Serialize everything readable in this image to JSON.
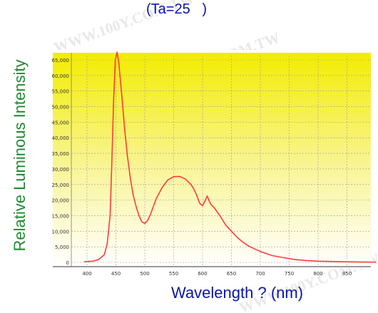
{
  "chart_data": {
    "type": "line",
    "title": "(Ta=25   )",
    "xlabel": "Wavelength ? (nm)",
    "ylabel": "Relative Luminous Intensity",
    "x_ticks": [
      "400",
      "450",
      "500",
      "550",
      "600",
      "650",
      "700",
      "750",
      "800",
      "850"
    ],
    "y_ticks": [
      "0",
      "5,000",
      "10,000",
      "15,000",
      "20,000",
      "25,000",
      "30,000",
      "35,000",
      "40,000",
      "45,000",
      "50,000",
      "55,000",
      "60,000",
      "65,000"
    ],
    "xlim": [
      380,
      905
    ],
    "ylim": [
      0,
      70000
    ],
    "grid": true,
    "background": {
      "top": "#f3ec00",
      "bottom": "#ffffff"
    },
    "series": [
      {
        "color": "#ff3b3b",
        "x": [
          395,
          410,
          420,
          430,
          435,
          440,
          443,
          446,
          449,
          452,
          455,
          460,
          465,
          470,
          475,
          480,
          485,
          490,
          495,
          500,
          505,
          510,
          515,
          520,
          530,
          540,
          550,
          560,
          570,
          580,
          585,
          590,
          595,
          600,
          605,
          608,
          612,
          615,
          620,
          630,
          640,
          650,
          660,
          670,
          680,
          700,
          720,
          740,
          760,
          780,
          800,
          820,
          840,
          860,
          880,
          900
        ],
        "values": [
          200,
          400,
          900,
          2500,
          6000,
          15000,
          32000,
          52000,
          65000,
          67500,
          64000,
          54000,
          43000,
          34000,
          27000,
          21500,
          18000,
          15000,
          13000,
          12500,
          13500,
          15500,
          18000,
          20500,
          24000,
          26500,
          27500,
          27600,
          26800,
          25000,
          23500,
          21500,
          19000,
          18200,
          20000,
          21300,
          19500,
          18500,
          17600,
          15000,
          12000,
          10000,
          8000,
          6500,
          5200,
          3500,
          2200,
          1500,
          900,
          600,
          400,
          300,
          200,
          150,
          100,
          80
        ]
      }
    ]
  },
  "watermark": "WWW.100Y.COM.TW"
}
